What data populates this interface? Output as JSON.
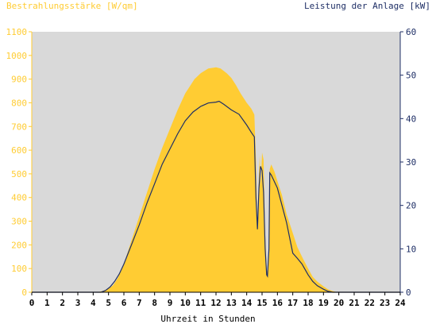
{
  "colors": {
    "plot_bg": "#d9d9d9",
    "irradiance_fill": "#ffcc33",
    "power_line": "#1f2f66",
    "left_axis": "#ffcc33",
    "right_axis": "#1f2f66",
    "x_axis": "#000000"
  },
  "chart_data": {
    "type": "area",
    "left_axis_title": "Bestrahlungsstärke [W/qm]",
    "right_axis_title": "Leistung der Anlage [kW]",
    "xlabel": "Uhrzeit in Stunden",
    "xlim": [
      0,
      24
    ],
    "ylim_left": [
      0,
      1100
    ],
    "ylim_right": [
      0,
      60
    ],
    "x_ticks": [
      "0",
      "1",
      "2",
      "3",
      "4",
      "5",
      "6",
      "7",
      "8",
      "9",
      "10",
      "11",
      "12",
      "13",
      "14",
      "15",
      "16",
      "17",
      "18",
      "19",
      "20",
      "21",
      "22",
      "23",
      "24"
    ],
    "y_left_ticks": [
      "0",
      "100",
      "200",
      "300",
      "400",
      "500",
      "600",
      "700",
      "800",
      "900",
      "1000",
      "1100"
    ],
    "y_right_ticks": [
      "0",
      "10",
      "20",
      "30",
      "40",
      "50",
      "60"
    ],
    "grid": false,
    "series": [
      {
        "name": "Bestrahlungsstärke [W/qm]",
        "axis": "left",
        "kind": "area",
        "points": [
          [
            0,
            0
          ],
          [
            4.3,
            0
          ],
          [
            4.6,
            5
          ],
          [
            5,
            15
          ],
          [
            5.3,
            30
          ],
          [
            5.6,
            60
          ],
          [
            6,
            120
          ],
          [
            6.5,
            220
          ],
          [
            7,
            320
          ],
          [
            7.5,
            420
          ],
          [
            8,
            520
          ],
          [
            8.5,
            610
          ],
          [
            9,
            690
          ],
          [
            9.5,
            770
          ],
          [
            10,
            840
          ],
          [
            10.3,
            870
          ],
          [
            10.6,
            900
          ],
          [
            11,
            925
          ],
          [
            11.5,
            945
          ],
          [
            12,
            950
          ],
          [
            12.3,
            945
          ],
          [
            12.7,
            925
          ],
          [
            13,
            905
          ],
          [
            13.3,
            875
          ],
          [
            13.6,
            840
          ],
          [
            14,
            800
          ],
          [
            14.3,
            775
          ],
          [
            14.5,
            750
          ],
          [
            14.6,
            560
          ],
          [
            14.7,
            270
          ],
          [
            14.8,
            500
          ],
          [
            14.85,
            580
          ],
          [
            14.9,
            450
          ],
          [
            15,
            590
          ],
          [
            15.1,
            560
          ],
          [
            15.2,
            250
          ],
          [
            15.3,
            100
          ],
          [
            15.35,
            80
          ],
          [
            15.45,
            180
          ],
          [
            15.5,
            520
          ],
          [
            15.6,
            540
          ],
          [
            15.8,
            510
          ],
          [
            16,
            470
          ],
          [
            16.3,
            410
          ],
          [
            16.6,
            330
          ],
          [
            17,
            250
          ],
          [
            17.3,
            190
          ],
          [
            17.6,
            150
          ],
          [
            18,
            100
          ],
          [
            18.3,
            65
          ],
          [
            18.6,
            45
          ],
          [
            19,
            25
          ],
          [
            19.3,
            12
          ],
          [
            19.6,
            5
          ],
          [
            19.9,
            0
          ],
          [
            24,
            0
          ]
        ]
      },
      {
        "name": "Leistung der Anlage [kW]",
        "axis": "right",
        "kind": "line",
        "points": [
          [
            0,
            0
          ],
          [
            4.5,
            0
          ],
          [
            4.8,
            0.4
          ],
          [
            5.1,
            1.2
          ],
          [
            5.4,
            2.5
          ],
          [
            5.7,
            4.2
          ],
          [
            6,
            6.5
          ],
          [
            6.5,
            11
          ],
          [
            7,
            15.5
          ],
          [
            7.5,
            20.5
          ],
          [
            8,
            25
          ],
          [
            8.5,
            29.5
          ],
          [
            9,
            33
          ],
          [
            9.5,
            36.5
          ],
          [
            10,
            39.5
          ],
          [
            10.5,
            41.5
          ],
          [
            11,
            42.8
          ],
          [
            11.5,
            43.6
          ],
          [
            12,
            43.8
          ],
          [
            12.2,
            44
          ],
          [
            12.5,
            43.3
          ],
          [
            13,
            42
          ],
          [
            13.5,
            41
          ],
          [
            14,
            38.5
          ],
          [
            14.3,
            36.8
          ],
          [
            14.5,
            35.8
          ],
          [
            14.6,
            22
          ],
          [
            14.7,
            14.5
          ],
          [
            14.8,
            24
          ],
          [
            14.9,
            29
          ],
          [
            15,
            28
          ],
          [
            15.1,
            23
          ],
          [
            15.2,
            10
          ],
          [
            15.3,
            4
          ],
          [
            15.35,
            3.7
          ],
          [
            15.45,
            10
          ],
          [
            15.5,
            27.5
          ],
          [
            15.6,
            27
          ],
          [
            16,
            24
          ],
          [
            16.3,
            20
          ],
          [
            16.6,
            16
          ],
          [
            17,
            9
          ],
          [
            17.3,
            7.8
          ],
          [
            17.6,
            6.5
          ],
          [
            18,
            4
          ],
          [
            18.3,
            2.5
          ],
          [
            18.6,
            1.5
          ],
          [
            19,
            0.7
          ],
          [
            19.3,
            0.2
          ],
          [
            19.6,
            0
          ],
          [
            24,
            0
          ]
        ]
      }
    ]
  }
}
